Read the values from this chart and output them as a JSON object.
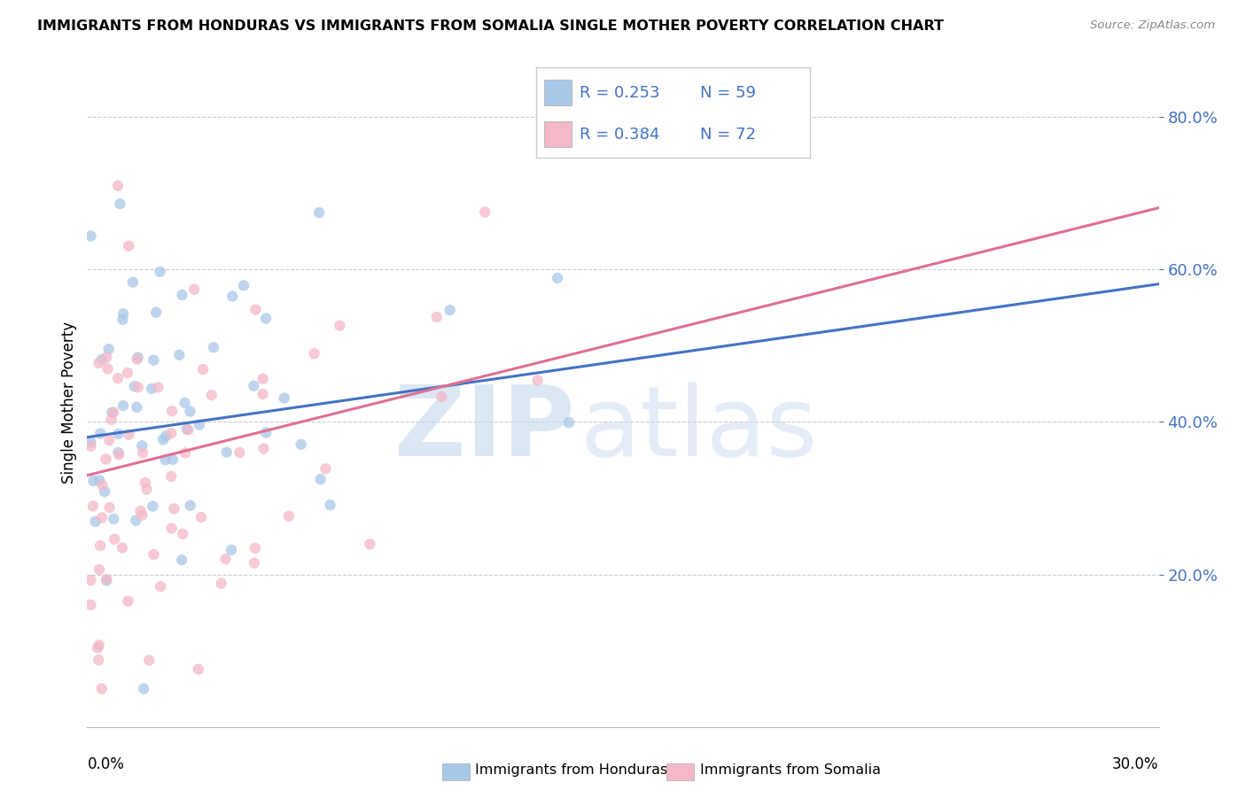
{
  "title": "IMMIGRANTS FROM HONDURAS VS IMMIGRANTS FROM SOMALIA SINGLE MOTHER POVERTY CORRELATION CHART",
  "source": "Source: ZipAtlas.com",
  "ylabel": "Single Mother Poverty",
  "legend_label1": "Immigrants from Honduras",
  "legend_label2": "Immigrants from Somalia",
  "R1": "0.253",
  "N1": "59",
  "R2": "0.384",
  "N2": "72",
  "xlim": [
    0.0,
    0.3
  ],
  "ylim": [
    0.0,
    0.85
  ],
  "yticks": [
    0.2,
    0.4,
    0.6,
    0.8
  ],
  "ytick_labels": [
    "20.0%",
    "40.0%",
    "60.0%",
    "80.0%"
  ],
  "xticks": [
    0.0,
    0.05,
    0.1,
    0.15,
    0.2,
    0.25,
    0.3
  ],
  "color_honduras": "#a8c8e8",
  "color_somalia": "#f4b8c8",
  "color_line_honduras": "#4472c4",
  "color_line_somalia": "#e07090",
  "legend_text_color": "#4472c4",
  "line1_intercept": 0.38,
  "line1_slope": 0.67,
  "line2_intercept": 0.33,
  "line2_slope": 1.17
}
